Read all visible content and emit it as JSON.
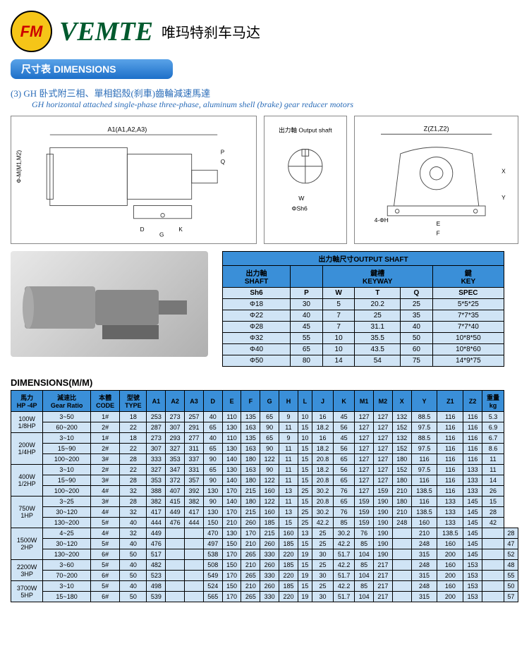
{
  "header": {
    "logo_text": "FM",
    "brand": "VEMTE",
    "brand_sub": "唯玛特刹车马达"
  },
  "section_bar": "尺寸表 DIMENSIONS",
  "product": {
    "num": "(3)",
    "title_cn": "GH 卧式附三相、單相鋁殼(刹車)齒輪減速馬達",
    "title_en": "GH horizontal attached single-phase three-phase, aluminum shell (brake) gear reducer motors"
  },
  "diagram_labels": {
    "a1": "A1(A1,A2,A3)",
    "m": "Φ-M(M1,M2)",
    "output": "出力軸 Output shaft",
    "z": "Z(Z1,Z2)"
  },
  "shaft_table": {
    "title": "出力軸尺寸OUTPUT SHAFT",
    "headers": {
      "shaft_cn": "出力軸",
      "shaft_en": "SHAFT",
      "keyway_cn": "鍵槽",
      "keyway_en": "KEYWAY",
      "key_cn": "鍵",
      "key_en": "KEY"
    },
    "cols": [
      "Sh6",
      "P",
      "W",
      "T",
      "Q",
      "SPEC"
    ],
    "rows": [
      [
        "Φ18",
        "30",
        "5",
        "20.2",
        "25",
        "5*5*25"
      ],
      [
        "Φ22",
        "40",
        "7",
        "25",
        "35",
        "7*7*35"
      ],
      [
        "Φ28",
        "45",
        "7",
        "31.1",
        "40",
        "7*7*40"
      ],
      [
        "Φ32",
        "55",
        "10",
        "35.5",
        "50",
        "10*8*50"
      ],
      [
        "Φ40",
        "65",
        "10",
        "43.5",
        "60",
        "10*8*60"
      ],
      [
        "Φ50",
        "80",
        "14",
        "54",
        "75",
        "14*9*75"
      ]
    ]
  },
  "dims": {
    "title": "DIMENSIONS(M/M)",
    "headers": [
      "馬力\nHP -4P",
      "減速比\nGear Ratio",
      "本體\nCODE",
      "型號\nTYPE",
      "A1",
      "A2",
      "A3",
      "D",
      "E",
      "F",
      "G",
      "H",
      "L",
      "J",
      "K",
      "M1",
      "M2",
      "X",
      "Y",
      "Z1",
      "Z2",
      "重量\nkg"
    ],
    "groups": [
      {
        "label": "100W\n1/8HP",
        "rows": [
          [
            "3~50",
            "1#",
            "18",
            "253",
            "273",
            "257",
            "40",
            "110",
            "135",
            "65",
            "9",
            "10",
            "16",
            "45",
            "127",
            "127",
            "132",
            "88.5",
            "116",
            "116",
            "5.3"
          ],
          [
            "60~200",
            "2#",
            "22",
            "287",
            "307",
            "291",
            "65",
            "130",
            "163",
            "90",
            "11",
            "15",
            "18.2",
            "56",
            "127",
            "127",
            "152",
            "97.5",
            "116",
            "116",
            "6.9"
          ]
        ]
      },
      {
        "label": "200W\n1/4HP",
        "rows": [
          [
            "3~10",
            "1#",
            "18",
            "273",
            "293",
            "277",
            "40",
            "110",
            "135",
            "65",
            "9",
            "10",
            "16",
            "45",
            "127",
            "127",
            "132",
            "88.5",
            "116",
            "116",
            "6.7"
          ],
          [
            "15~90",
            "2#",
            "22",
            "307",
            "327",
            "311",
            "65",
            "130",
            "163",
            "90",
            "11",
            "15",
            "18.2",
            "56",
            "127",
            "127",
            "152",
            "97.5",
            "116",
            "116",
            "8.6"
          ],
          [
            "100~200",
            "3#",
            "28",
            "333",
            "353",
            "337",
            "90",
            "140",
            "180",
            "122",
            "11",
            "15",
            "20.8",
            "65",
            "127",
            "127",
            "180",
            "116",
            "116",
            "116",
            "11"
          ]
        ]
      },
      {
        "label": "400W\n1/2HP",
        "rows": [
          [
            "3~10",
            "2#",
            "22",
            "327",
            "347",
            "331",
            "65",
            "130",
            "163",
            "90",
            "11",
            "15",
            "18.2",
            "56",
            "127",
            "127",
            "152",
            "97.5",
            "116",
            "133",
            "11"
          ],
          [
            "15~90",
            "3#",
            "28",
            "353",
            "372",
            "357",
            "90",
            "140",
            "180",
            "122",
            "11",
            "15",
            "20.8",
            "65",
            "127",
            "127",
            "180",
            "116",
            "116",
            "133",
            "14"
          ],
          [
            "100~200",
            "4#",
            "32",
            "388",
            "407",
            "392",
            "130",
            "170",
            "215",
            "160",
            "13",
            "25",
            "30.2",
            "76",
            "127",
            "159",
            "210",
            "138.5",
            "116",
            "133",
            "26"
          ]
        ]
      },
      {
        "label": "750W\n1HP",
        "rows": [
          [
            "3~25",
            "3#",
            "28",
            "382",
            "415",
            "382",
            "90",
            "140",
            "180",
            "122",
            "11",
            "15",
            "20.8",
            "65",
            "159",
            "190",
            "180",
            "116",
            "133",
            "145",
            "15"
          ],
          [
            "30~120",
            "4#",
            "32",
            "417",
            "449",
            "417",
            "130",
            "170",
            "215",
            "160",
            "13",
            "25",
            "30.2",
            "76",
            "159",
            "190",
            "210",
            "138.5",
            "133",
            "145",
            "28"
          ],
          [
            "130~200",
            "5#",
            "40",
            "444",
            "476",
            "444",
            "150",
            "210",
            "260",
            "185",
            "15",
            "25",
            "42.2",
            "85",
            "159",
            "190",
            "248",
            "160",
            "133",
            "145",
            "42"
          ]
        ]
      },
      {
        "label": "1500W\n2HP",
        "rows": [
          [
            "4~25",
            "4#",
            "32",
            "449",
            "",
            "",
            "470",
            "130",
            "170",
            "215",
            "160",
            "13",
            "25",
            "30.2",
            "76",
            "190",
            "",
            "210",
            "138.5",
            "145",
            "",
            "28"
          ],
          [
            "30~120",
            "5#",
            "40",
            "476",
            "",
            "",
            "497",
            "150",
            "210",
            "260",
            "185",
            "15",
            "25",
            "42.2",
            "85",
            "190",
            "",
            "248",
            "160",
            "145",
            "",
            "47"
          ],
          [
            "130~200",
            "6#",
            "50",
            "517",
            "",
            "",
            "538",
            "170",
            "265",
            "330",
            "220",
            "19",
            "30",
            "51.7",
            "104",
            "190",
            "",
            "315",
            "200",
            "145",
            "",
            "52"
          ]
        ]
      },
      {
        "label": "2200W\n3HP",
        "rows": [
          [
            "3~60",
            "5#",
            "40",
            "482",
            "",
            "",
            "508",
            "150",
            "210",
            "260",
            "185",
            "15",
            "25",
            "42.2",
            "85",
            "217",
            "",
            "248",
            "160",
            "153",
            "",
            "48"
          ],
          [
            "70~200",
            "6#",
            "50",
            "523",
            "",
            "",
            "549",
            "170",
            "265",
            "330",
            "220",
            "19",
            "30",
            "51.7",
            "104",
            "217",
            "",
            "315",
            "200",
            "153",
            "",
            "55"
          ]
        ]
      },
      {
        "label": "3700W\n5HP",
        "rows": [
          [
            "3~10",
            "5#",
            "40",
            "498",
            "",
            "",
            "524",
            "150",
            "210",
            "260",
            "185",
            "15",
            "25",
            "42.2",
            "85",
            "217",
            "",
            "248",
            "160",
            "153",
            "",
            "50"
          ],
          [
            "15~180",
            "6#",
            "50",
            "539",
            "",
            "",
            "565",
            "170",
            "265",
            "330",
            "220",
            "19",
            "30",
            "51.7",
            "104",
            "217",
            "",
            "315",
            "200",
            "153",
            "",
            "57"
          ]
        ]
      }
    ]
  }
}
